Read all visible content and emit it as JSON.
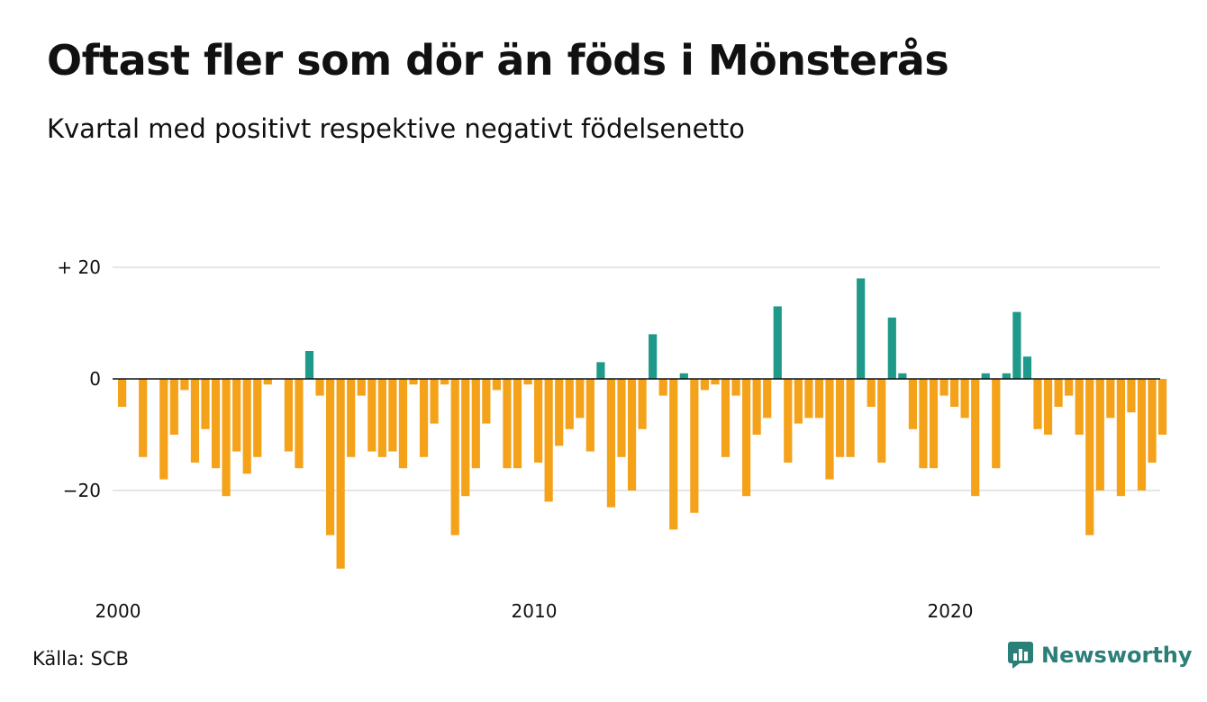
{
  "title": "Oftast fler som dör än föds i Mönsterås",
  "subtitle": "Kvartal med positivt respektive negativt födelsenetto",
  "source": "Källa: SCB",
  "brand": "Newsworthy",
  "colors": {
    "positive": "#1f9a8a",
    "negative": "#f5a21b",
    "grid": "#dddddd",
    "zero": "#111111",
    "brand": "#2a7f79"
  },
  "chart_data": {
    "type": "bar",
    "ylim": [
      -36,
      26
    ],
    "yticks": [
      {
        "value": 20,
        "label": "+ 20"
      },
      {
        "value": 0,
        "label": "0"
      },
      {
        "value": -20,
        "label": "−20"
      }
    ],
    "xticks": [
      {
        "year": 2000,
        "label": "2000"
      },
      {
        "year": 2010,
        "label": "2010"
      },
      {
        "year": 2020,
        "label": "2020"
      }
    ],
    "start_year": 2000,
    "values": [
      -5,
      0,
      -14,
      0,
      -18,
      -10,
      -2,
      -15,
      -9,
      -16,
      -21,
      -13,
      -17,
      -14,
      -1,
      0,
      -13,
      -16,
      5,
      -3,
      -28,
      -34,
      -14,
      -3,
      -13,
      -14,
      -13,
      -16,
      -1,
      -14,
      -8,
      -1,
      -28,
      -21,
      -16,
      -8,
      -2,
      -16,
      -16,
      -1,
      -15,
      -22,
      -12,
      -9,
      -7,
      -13,
      3,
      -23,
      -14,
      -20,
      -9,
      8,
      -3,
      -27,
      1,
      -24,
      -2,
      -1,
      -14,
      -3,
      -21,
      -10,
      -7,
      13,
      -15,
      -8,
      -7,
      -7,
      -18,
      -14,
      -14,
      18,
      -5,
      -15,
      11,
      1,
      -9,
      -16,
      -16,
      -3,
      -5,
      -7,
      -21,
      1,
      -16,
      1,
      12,
      4,
      -9,
      -10,
      -5,
      -3,
      -10,
      -28,
      -20,
      -7,
      -21,
      -6,
      -20,
      -15,
      -10
    ]
  }
}
